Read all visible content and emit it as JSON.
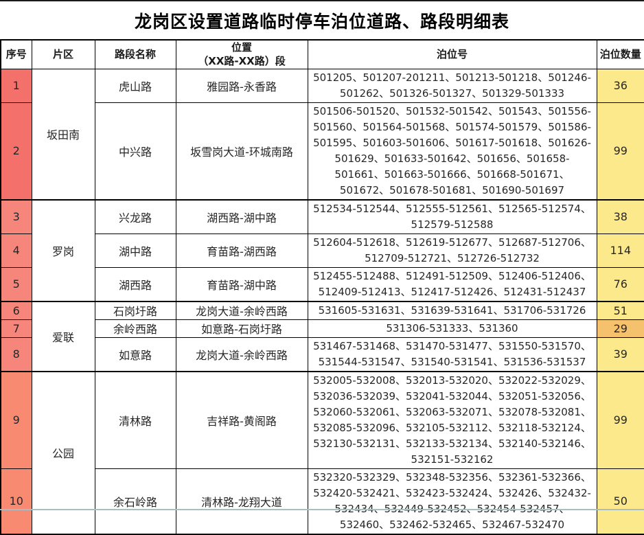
{
  "title": "龙岗区设置道路临时停车泊位道路、路段明细表",
  "header": {
    "no": "序号",
    "area": "片区",
    "road": "路段名称",
    "location_line1": "位置",
    "location_line2": "（XX路-XX路）段",
    "bays": "泊位号",
    "count": "泊位数量"
  },
  "rows": [
    {
      "no": "1",
      "area": "坂田南",
      "road": "虎山路",
      "location": "雅园路-永香路",
      "bays": "501205、501207-201211、501213-501218、501246-501262、501326-501327、501329-501333",
      "count": "36"
    },
    {
      "no": "2",
      "road": "中兴路",
      "location": "坂雪岗大道-环城南路",
      "bays": "501506-501520、501532-501542、501543、501556-501560、501564-501568、501574-501579、501586-501595、501603-501606、501617-501618、501626-501629、501633-501642、501656、501658-501661、501663-501666、501668-501671、501672、501678-501681、501690-501697",
      "count": "99"
    },
    {
      "no": "3",
      "area": "罗岗",
      "road": "兴龙路",
      "location": "湖西路-湖中路",
      "bays": "512534-512544、512555-512561、512565-512574、512579-512588",
      "count": "38"
    },
    {
      "no": "4",
      "road": "湖中路",
      "location": "育苗路-湖西路",
      "bays": "512604-512618、512619-512677、512687-512706、512709-512721、512726-512732",
      "count": "114"
    },
    {
      "no": "5",
      "road": "湖西路",
      "location": "育苗路-湖中路",
      "bays": "512455-512488、512491-512509、512406-512406、512409-512413、512417-512426、512431-512437",
      "count": "76"
    },
    {
      "no": "6",
      "area": "爱联",
      "road": "石岗圩路",
      "location": "龙岗大道-余岭西路",
      "bays": "531605-531631、531639-531641、531706-531726",
      "count": "51"
    },
    {
      "no": "7",
      "road": "余岭西路",
      "location": "如意路-石岗圩路",
      "bays": "531306-531333、531360",
      "count": "29"
    },
    {
      "no": "8",
      "road": "如意路",
      "location": "龙岗大道-余岭西路",
      "bays": "531467-531468、531470-531477、531550-531570、531544-531547、531540-531541、531536-531537",
      "count": "39"
    },
    {
      "no": "9",
      "area": "公园",
      "road": "清林路",
      "location": "吉祥路-黄阁路",
      "bays": "532005-532008、532013-532020、532022-532029、532036-532039、532041-532044、532051-532056、532060-532061、532063-532071、532078-532081、532085-532096、532105-532112、532118-532124、532130-532131、532133-532134、532140-532146、532151-532162",
      "count": "99"
    },
    {
      "no": "10",
      "road": "余石岭路",
      "location": "清林路-龙翔大道",
      "bays": "532320-532329、532348-532356、532361-532366、532420-532421、532423-532424、532426、532432-532434、532449-532452、532454-532457、532460、532462-532465、532467-532470",
      "count": "50"
    }
  ],
  "colors": {
    "serial_a": "#f4716b",
    "serial_b": "#f6857c",
    "serial_c": "#f88a72",
    "count_yellow": "#fbe98c",
    "count_orange": "#f6c16d",
    "border": "#000000",
    "bottom_strip": "#a9bec4"
  }
}
